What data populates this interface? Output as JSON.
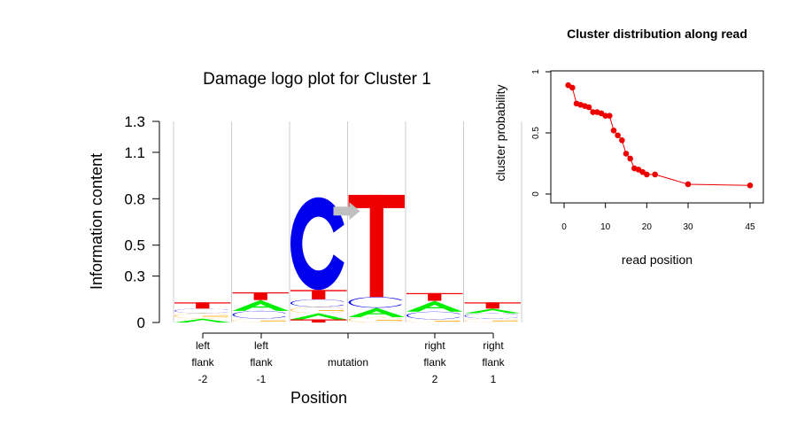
{
  "chart_data": [
    {
      "type": "logo",
      "title": "Damage logo plot for Cluster 1",
      "xlabel": "Position",
      "ylabel": "Information content",
      "ylim": [
        0,
        1.3
      ],
      "yticks": [
        "0",
        "0.3",
        "0.5",
        "0.8",
        "1.1",
        "1.3"
      ],
      "positions": [
        {
          "label": [
            "left",
            "flank",
            "-2"
          ],
          "stack": [
            {
              "base": "A",
              "h": 0.025
            },
            {
              "base": "G",
              "h": 0.035
            },
            {
              "base": "C",
              "h": 0.03
            },
            {
              "base": "T",
              "h": 0.04
            }
          ]
        },
        {
          "label": [
            "left",
            "flank",
            "-1"
          ],
          "stack": [
            {
              "base": "G",
              "h": 0.025
            },
            {
              "base": "C",
              "h": 0.05
            },
            {
              "base": "A",
              "h": 0.07
            },
            {
              "base": "T",
              "h": 0.05
            }
          ]
        },
        {
          "label": [
            "",
            "",
            ""
          ],
          "stack": [
            {
              "base": "T",
              "h": 0.02
            },
            {
              "base": "A",
              "h": 0.04
            },
            {
              "base": "G",
              "h": 0.04
            },
            {
              "base": "C",
              "h": 0.05
            },
            {
              "base": "T",
              "h": 0.06
            },
            {
              "base": "C",
              "h": 0.6
            }
          ]
        },
        {
          "label": [
            "",
            "",
            ""
          ],
          "stack": [
            {
              "base": "G",
              "h": 0.035
            },
            {
              "base": "A",
              "h": 0.06
            },
            {
              "base": "C",
              "h": 0.07
            },
            {
              "base": "T",
              "h": 0.66
            }
          ]
        },
        {
          "label": [
            "right",
            "flank",
            "2"
          ],
          "stack": [
            {
              "base": "G",
              "h": 0.02
            },
            {
              "base": "C",
              "h": 0.05
            },
            {
              "base": "A",
              "h": 0.07
            },
            {
              "base": "T",
              "h": 0.05
            }
          ]
        },
        {
          "label": [
            "right",
            "flank",
            "1"
          ],
          "stack": [
            {
              "base": "G",
              "h": 0.025
            },
            {
              "base": "C",
              "h": 0.035
            },
            {
              "base": "A",
              "h": 0.03
            },
            {
              "base": "T",
              "h": 0.04
            }
          ]
        }
      ],
      "mutation_label": "mutation",
      "colors": {
        "A": "#00ee00",
        "C": "#0000ee",
        "G": "#ffa500",
        "T": "#ee0000",
        "arrow": "#c0c0c0"
      }
    },
    {
      "type": "scatter",
      "title": "Cluster distribution along read",
      "xlabel": "read position",
      "ylabel": "cluster probability",
      "xlim": [
        0,
        45
      ],
      "ylim": [
        0,
        1
      ],
      "xticks": [
        "0",
        "10",
        "20",
        "30",
        "45"
      ],
      "yticks": [
        "0",
        "0.5",
        "1"
      ],
      "x": [
        1,
        2,
        3,
        4,
        5,
        6,
        7,
        8,
        9,
        10,
        11,
        12,
        13,
        14,
        15,
        16,
        17,
        18,
        19,
        20,
        22,
        30,
        45
      ],
      "y": [
        0.89,
        0.87,
        0.74,
        0.73,
        0.72,
        0.71,
        0.67,
        0.67,
        0.66,
        0.64,
        0.64,
        0.52,
        0.48,
        0.44,
        0.33,
        0.29,
        0.21,
        0.2,
        0.18,
        0.16,
        0.16,
        0.08,
        0.07
      ],
      "color": "#ee0000"
    }
  ]
}
